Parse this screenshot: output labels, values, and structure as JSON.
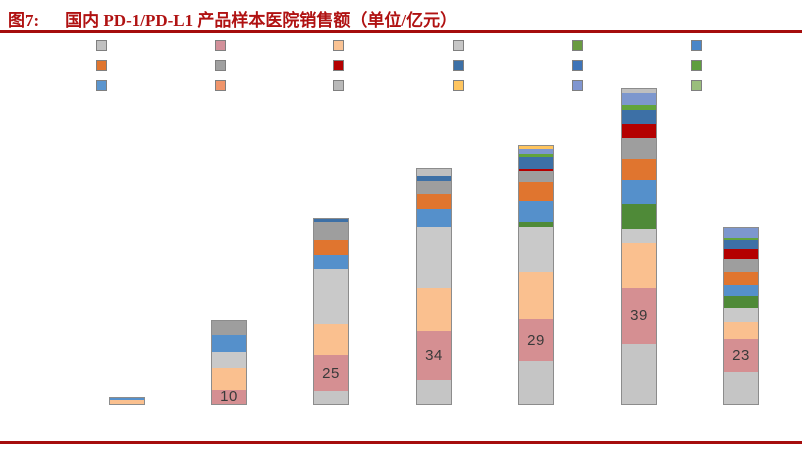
{
  "figure": {
    "label": "图7:",
    "title": "国内 PD-1/PD-L1 产品样本医院销售额（单位/亿元）",
    "accent_color": "#B01212"
  },
  "legend": {
    "position": "top",
    "text_labels_visible": false,
    "columns": [
      [
        "#C0C0C0",
        "#E0752F",
        "#5B95CE"
      ],
      [
        "#D2909A",
        "#A0A0A0",
        "#F0956B"
      ],
      [
        "#FAC394",
        "#B40000",
        "#B9B9B9"
      ],
      [
        "#C6C6C6",
        "#3D70A6",
        "#FFC55F"
      ],
      [
        "#699B41",
        "#3E74B8",
        "#8096D0"
      ],
      [
        "#4A86C8",
        "#5F9E3E",
        "#9ABE7C"
      ]
    ]
  },
  "chart_data": {
    "type": "bar",
    "stacked": true,
    "title": "图7: 国内 PD-1/PD-L1 产品样本医院销售额（单位/亿元）",
    "unit": "亿元",
    "categories": [
      "",
      "",
      "",
      "",
      "",
      "",
      ""
    ],
    "axes": {
      "x_labels_visible": false,
      "y_axis_visible": false,
      "gridlines": false
    },
    "series": [
      {
        "name": "silver-base",
        "color": "#C5C5C5",
        "values": [
          0,
          0,
          9,
          17,
          30,
          42,
          22
        ]
      },
      {
        "name": "rose",
        "color": "#D58F92",
        "values": [
          0,
          10,
          25,
          34,
          29,
          39,
          23
        ],
        "labels": [
          "",
          "10",
          "25",
          "34",
          "29",
          "39",
          "23"
        ]
      },
      {
        "name": "peach",
        "color": "#FAC08F",
        "values": [
          2.5,
          15,
          22,
          30,
          33,
          31,
          12
        ]
      },
      {
        "name": "light-gray",
        "color": "#C9C9C9",
        "values": [
          0,
          11,
          38,
          42,
          31,
          10,
          10
        ]
      },
      {
        "name": "dark-green",
        "color": "#4F8A38",
        "values": [
          0,
          0,
          0,
          0,
          3.5,
          17,
          8
        ]
      },
      {
        "name": "blue",
        "color": "#5590CB",
        "values": [
          2,
          12,
          10,
          13,
          15,
          17,
          8
        ]
      },
      {
        "name": "dark-orange",
        "color": "#E0752F",
        "values": [
          0,
          0,
          10,
          10,
          13,
          15,
          9
        ]
      },
      {
        "name": "medium-gray",
        "color": "#9E9E9E",
        "values": [
          0,
          10,
          13,
          9,
          8,
          14,
          9
        ]
      },
      {
        "name": "dark-red",
        "color": "#B40000",
        "values": [
          0,
          0,
          0,
          0,
          1.5,
          10,
          7
        ]
      },
      {
        "name": "steel-blue",
        "color": "#3D70A6",
        "values": [
          0,
          0,
          2,
          3.5,
          8,
          10,
          6
        ]
      },
      {
        "name": "bright-green",
        "color": "#62A43C",
        "values": [
          0,
          0,
          0,
          0,
          2,
          3.5,
          1.5
        ]
      },
      {
        "name": "periwinkle",
        "color": "#7D97CE",
        "values": [
          0,
          0,
          0,
          0,
          3.5,
          8,
          7
        ]
      },
      {
        "name": "amber",
        "color": "#FFC55F",
        "values": [
          0,
          0,
          0,
          0,
          2,
          0,
          0
        ]
      },
      {
        "name": "silver-cap",
        "color": "#BFBFBF",
        "values": [
          0,
          0,
          0,
          5,
          0,
          3,
          0
        ]
      }
    ]
  }
}
